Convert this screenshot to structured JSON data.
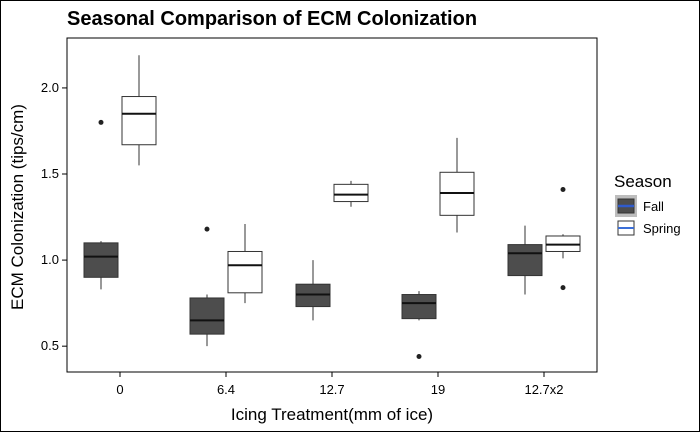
{
  "chart_data": {
    "type": "boxplot",
    "title": "Seasonal Comparison of ECM Colonization",
    "xlabel": "Icing Treatment(mm of ice)",
    "ylabel": "ECM Colonization (tips/cm)",
    "categories": [
      "0",
      "6.4",
      "12.7",
      "19",
      "12.7x2"
    ],
    "yticks": [
      "0.5",
      "1.0",
      "1.5",
      "2.0"
    ],
    "ylim": [
      0.35,
      2.29
    ],
    "grid": false,
    "legend": {
      "title": "Season",
      "position": "right"
    },
    "colors": {
      "Fall": "#4d4d4d",
      "Spring": "#ffffff",
      "legend_key_bg": "#bdbdbd",
      "legend_spring_line": "#3b6fd8",
      "legend_fall_line": "#2f5bcc"
    },
    "series": [
      {
        "name": "Fall",
        "boxes": [
          {
            "category": "0",
            "whisker_low": 0.83,
            "q1": 0.9,
            "median": 1.02,
            "q3": 1.1,
            "whisker_high": 1.11,
            "outliers": [
              1.8
            ]
          },
          {
            "category": "6.4",
            "whisker_low": 0.5,
            "q1": 0.57,
            "median": 0.65,
            "q3": 0.78,
            "whisker_high": 0.8,
            "outliers": [
              1.18
            ]
          },
          {
            "category": "12.7",
            "whisker_low": 0.65,
            "q1": 0.73,
            "median": 0.8,
            "q3": 0.86,
            "whisker_high": 1.0,
            "outliers": []
          },
          {
            "category": "19",
            "whisker_low": 0.65,
            "q1": 0.66,
            "median": 0.75,
            "q3": 0.8,
            "whisker_high": 0.82,
            "outliers": [
              0.44
            ]
          },
          {
            "category": "12.7x2",
            "whisker_low": 0.8,
            "q1": 0.91,
            "median": 1.04,
            "q3": 1.09,
            "whisker_high": 1.2,
            "outliers": []
          }
        ]
      },
      {
        "name": "Spring",
        "boxes": [
          {
            "category": "0",
            "whisker_low": 1.55,
            "q1": 1.67,
            "median": 1.85,
            "q3": 1.95,
            "whisker_high": 2.19,
            "outliers": []
          },
          {
            "category": "6.4",
            "whisker_low": 0.75,
            "q1": 0.81,
            "median": 0.97,
            "q3": 1.05,
            "whisker_high": 1.21,
            "outliers": []
          },
          {
            "category": "12.7",
            "whisker_low": 1.31,
            "q1": 1.34,
            "median": 1.38,
            "q3": 1.44,
            "whisker_high": 1.46,
            "outliers": []
          },
          {
            "category": "19",
            "whisker_low": 1.16,
            "q1": 1.26,
            "median": 1.39,
            "q3": 1.51,
            "whisker_high": 1.71,
            "outliers": []
          },
          {
            "category": "12.7x2",
            "whisker_low": 1.01,
            "q1": 1.05,
            "median": 1.09,
            "q3": 1.14,
            "whisker_high": 1.15,
            "outliers": [
              1.41,
              0.84
            ]
          }
        ]
      }
    ]
  }
}
